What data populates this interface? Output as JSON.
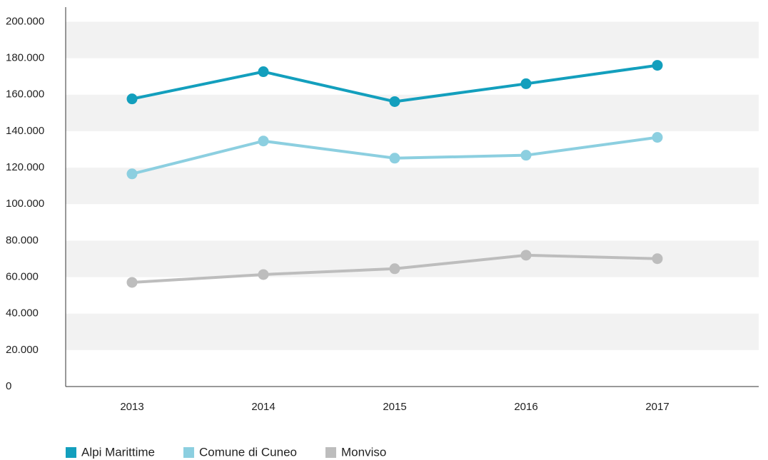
{
  "chart_data": {
    "type": "line",
    "categories": [
      "2013",
      "2014",
      "2015",
      "2016",
      "2017"
    ],
    "series": [
      {
        "name": "Alpi Marittime",
        "color": "#139fbd",
        "values": [
          157700,
          172600,
          156200,
          166000,
          176100
        ]
      },
      {
        "name": "Comune di Cuneo",
        "color": "#8ccfe0",
        "values": [
          116600,
          134600,
          125200,
          126800,
          136600
        ]
      },
      {
        "name": "Monviso",
        "color": "#bdbdbd",
        "values": [
          57100,
          61400,
          64600,
          72000,
          70100
        ]
      }
    ],
    "ylim": [
      0,
      208000
    ],
    "yticks": [
      0,
      {
        "value": 20000,
        "label": "20.000"
      },
      {
        "value": 40000,
        "label": "40.000"
      },
      {
        "value": 60000,
        "label": "60.000"
      },
      {
        "value": 80000,
        "label": "80.000"
      },
      {
        "value": 100000,
        "label": "100.000"
      },
      {
        "value": 120000,
        "label": "120.000"
      },
      {
        "value": 140000,
        "label": "140.000"
      },
      {
        "value": 160000,
        "label": "160.000"
      },
      {
        "value": 180000,
        "label": "180.000"
      },
      {
        "value": 200000,
        "label": "200.000"
      }
    ],
    "grid": "bands",
    "legend": "bottom-left"
  }
}
